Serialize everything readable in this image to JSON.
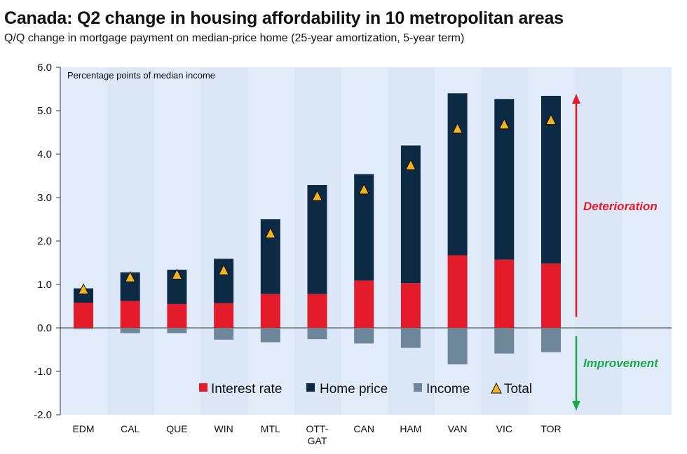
{
  "header": {
    "title": "Canada: Q2 change in housing affordability in 10 metropolitan areas",
    "subtitle": "Q/Q change in mortgage payment on median-price home (25-year amortization, 5-year term)"
  },
  "chart_data": {
    "type": "bar",
    "stacked": true,
    "unit_note": "Percentage points of median income",
    "categories": [
      "EDM",
      "CAL",
      "QUE",
      "WIN",
      "MTL",
      "OTT-GAT",
      "CAN",
      "HAM",
      "VAN",
      "VIC",
      "TOR"
    ],
    "category_lines": [
      [
        "EDM"
      ],
      [
        "CAL"
      ],
      [
        "QUE"
      ],
      [
        "WIN"
      ],
      [
        "MTL"
      ],
      [
        "OTT-",
        "GAT"
      ],
      [
        "CAN"
      ],
      [
        "HAM"
      ],
      [
        "VAN"
      ],
      [
        "VIC"
      ],
      [
        "TOR"
      ]
    ],
    "series": [
      {
        "name": "Interest rate",
        "color": "#e31b2b",
        "values": [
          0.58,
          0.62,
          0.55,
          0.57,
          0.78,
          0.78,
          1.09,
          1.03,
          1.67,
          1.57,
          1.48
        ]
      },
      {
        "name": "Home price",
        "color": "#0c2a44",
        "values": [
          0.33,
          0.66,
          0.79,
          1.02,
          1.72,
          2.51,
          2.45,
          3.17,
          3.73,
          3.7,
          3.86
        ]
      },
      {
        "name": "Income",
        "color": "#6d8799",
        "values": [
          -0.03,
          -0.12,
          -0.12,
          -0.27,
          -0.33,
          -0.26,
          -0.36,
          -0.46,
          -0.84,
          -0.59,
          -0.56
        ]
      },
      {
        "name": "Total",
        "color": "#f5b31c",
        "marker": "triangle",
        "values": [
          0.88,
          1.16,
          1.22,
          1.32,
          2.17,
          3.03,
          3.18,
          3.74,
          4.58,
          4.68,
          4.78
        ]
      }
    ],
    "ylim": [
      -2.0,
      6.0
    ],
    "yticks": [
      "6.0",
      "5.0",
      "4.0",
      "3.0",
      "2.0",
      "1.0",
      "0.0",
      "-1.0",
      "-2.0"
    ],
    "ytick_values": [
      6,
      5,
      4,
      3,
      2,
      1,
      0,
      -1,
      -2
    ],
    "grid": false,
    "legend_position": "bottom-center",
    "annotations": {
      "up": {
        "text": "Deterioration",
        "color": "#e31b2b"
      },
      "down": {
        "text": "Improvement",
        "color": "#1aaa4a"
      }
    }
  }
}
